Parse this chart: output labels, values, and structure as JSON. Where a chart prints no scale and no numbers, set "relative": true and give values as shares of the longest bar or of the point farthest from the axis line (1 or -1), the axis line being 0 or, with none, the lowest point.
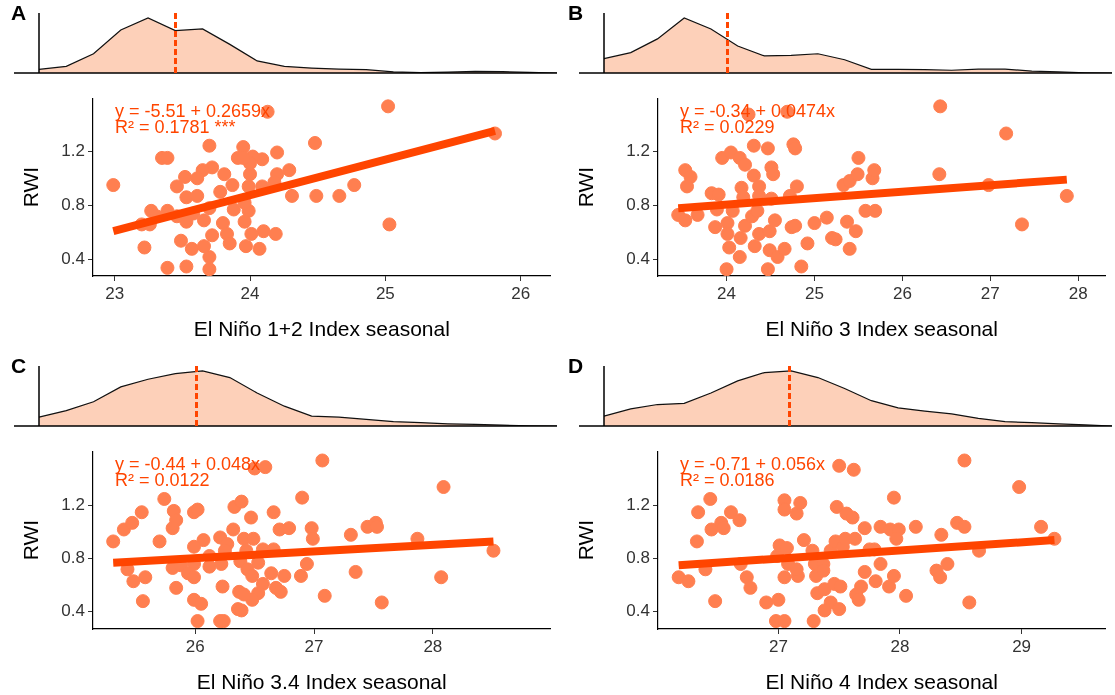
{
  "chart_data": [
    {
      "type": "area",
      "title": "A",
      "relative": true,
      "categories": [
        null,
        null,
        null,
        null,
        null,
        null,
        null,
        null,
        null,
        null,
        null,
        null,
        null,
        null,
        null,
        null,
        null,
        null,
        null,
        null
      ],
      "series": [
        {
          "color": "#fdd0b9",
          "values": [
            0.065,
            0.12,
            0.35,
            0.78,
            1,
            0.77,
            0.8,
            0.52,
            0.22,
            0.12,
            0.09,
            0.07,
            0.06,
            0.02,
            0.008,
            0.015,
            0.03,
            0.025,
            0.01,
            0
          ]
        }
      ]
    },
    {
      "type": "scatter",
      "xlabel": "El Niño 1+2 Index seasonal",
      "ylabel": "RWI",
      "xlim": [
        22.84,
        26.22
      ],
      "xticks": [
        23,
        24,
        25,
        26
      ],
      "ylim": [
        0.28,
        1.59
      ],
      "yticks": [
        0.4,
        0.8,
        1.2
      ],
      "annotations": [
        "y = -5.51 + 0.2659x",
        "R² = 0.1781 ***"
      ],
      "series": [
        {
          "type": "scatter",
          "color": "#ff7f50",
          "x": [
            22.99,
            25.02,
            25.81,
            25.03,
            24.48,
            24.77,
            24.66,
            24.49,
            24.31,
            24.29,
            24.2,
            24.2,
            24.09,
            24.02,
            23.95,
            23.91,
            24.13,
            23.7,
            23.35,
            23.39,
            23.22,
            23.2,
            23.26,
            23.27,
            23.39,
            23.39,
            23.53,
            23.7,
            23.7,
            23.66,
            23.57,
            23.49,
            23.53,
            23.58,
            23.72,
            23.8,
            23.83,
            23.85,
            23.97,
            24.07,
            24.1,
            24.19,
            24.01,
            23.99,
            23.96,
            23.88,
            23.96,
            23.78,
            23.87,
            23.81,
            23.72,
            23.65,
            23.61,
            23.52,
            23.46,
            23.53,
            23.61,
            23.7,
            23.66,
            23.46,
            23.31,
            23.99,
            24,
            24,
            24.09,
            24.18,
            23.95
          ],
          "values": [
            0.95,
            1.53,
            1.33,
            0.66,
            1.26,
            0.95,
            0.87,
            0.87,
            0.87,
            1.06,
            1.03,
            1.19,
            1.14,
            1.16,
            1.23,
            1.15,
            1.49,
            1.24,
            1.15,
            1.15,
            0.49,
            0.66,
            0.66,
            0.76,
            0.76,
            0.34,
            0.35,
            0.33,
            0.42,
            0.5,
            0.48,
            0.54,
            0.68,
            0.74,
            0.58,
            0.67,
            0.59,
            0.52,
            0.5,
            0.48,
            0.61,
            0.59,
            0.59,
            0.76,
            0.68,
            0.77,
            0.82,
            0.9,
            0.95,
            1.03,
            1.08,
            1.06,
            1,
            1.01,
            0.94,
            0.86,
            0.87,
            0.78,
            0.69,
            0.72,
            0.72,
            0.94,
            1.03,
            1.11,
            0.94,
            0.97,
            1.15
          ]
        },
        {
          "type": "line",
          "color": "#ff4500",
          "x": [
            22.99,
            25.81
          ],
          "values": [
            0.61,
            1.35
          ]
        }
      ]
    },
    {
      "type": "area",
      "title": "B",
      "relative": true,
      "categories": [
        null,
        null,
        null,
        null,
        null,
        null,
        null,
        null,
        null,
        null,
        null,
        null,
        null,
        null,
        null,
        null,
        null,
        null,
        null,
        null
      ],
      "series": [
        {
          "color": "#fdd0b9",
          "values": [
            0.26,
            0.37,
            0.62,
            1,
            0.8,
            0.49,
            0.31,
            0.32,
            0.35,
            0.24,
            0.065,
            0.065,
            0.06,
            0.05,
            0.07,
            0.07,
            0.035,
            0.02,
            0.005,
            0
          ]
        }
      ]
    },
    {
      "type": "scatter",
      "xlabel": "El Niño 3 Index seasonal",
      "ylabel": "RWI",
      "xlim": [
        23.22,
        28.31
      ],
      "xticks": [
        24,
        25,
        26,
        27,
        28
      ],
      "ylim": [
        0.28,
        1.59
      ],
      "yticks": [
        0.4,
        0.8,
        1.2
      ],
      "annotations": [
        "y = -0.34 + 0.0474x",
        "R² = 0.0229"
      ],
      "series": [
        {
          "type": "scatter",
          "color": "#ff7f50",
          "x": [
            23.45,
            23.53,
            23.59,
            23.55,
            23.53,
            23.67,
            23.83,
            23.91,
            23.89,
            23.87,
            23.95,
            24.05,
            24.15,
            24.21,
            24.31,
            24.47,
            24.69,
            24.25,
            24.76,
            24.78,
            24.51,
            24.53,
            24.31,
            24.37,
            24.17,
            24.19,
            24.37,
            24.51,
            24.72,
            24.8,
            24.07,
            24.01,
            24.01,
            24.03,
            24.16,
            24.15,
            24,
            24.47,
            24.85,
            24.32,
            24.37,
            24.49,
            24.55,
            24.21,
            24.29,
            24.35,
            24.49,
            24.58,
            24.66,
            24.74,
            24.78,
            24.92,
            25,
            25.14,
            25.2,
            25.24,
            25.37,
            25.47,
            25.4,
            25.33,
            25.4,
            25.49,
            25.5,
            25.58,
            25.69,
            25.66,
            25.68,
            26.42,
            26.43,
            26.98,
            27.18,
            27.36,
            27.87
          ],
          "values": [
            0.73,
            1.06,
            1.01,
            0.94,
            0.69,
            0.73,
            0.89,
            0.88,
            0.77,
            0.64,
            1.15,
            1.19,
            1.15,
            1.1,
            1.24,
            1.22,
            1.49,
            1.47,
            1.25,
            1.22,
            1.08,
            1.03,
            1.02,
            0.94,
            0.93,
            0.86,
            0.87,
            0.85,
            0.87,
            0.94,
            0.76,
            0.67,
            0.59,
            0.49,
            0.56,
            0.42,
            0.33,
            0.33,
            0.35,
            0.5,
            0.59,
            0.61,
            0.69,
            0.65,
            0.72,
            0.76,
            0.47,
            0.42,
            0.48,
            0.64,
            0.65,
            0.52,
            0.67,
            0.71,
            0.56,
            0.55,
            0.68,
            0.61,
            0.48,
            0.95,
            0.98,
            1.03,
            1.15,
            0.76,
            0.76,
            1,
            1.06,
            1.03,
            1.53,
            0.95,
            1.33,
            0.66,
            0.87
          ]
        },
        {
          "type": "line",
          "color": "#ff4500",
          "x": [
            23.45,
            27.87
          ],
          "values": [
            0.78,
            0.99
          ]
        }
      ]
    },
    {
      "type": "area",
      "title": "C",
      "relative": true,
      "categories": [
        null,
        null,
        null,
        null,
        null,
        null,
        null,
        null,
        null,
        null,
        null,
        null,
        null,
        null,
        null,
        null,
        null,
        null,
        null,
        null
      ],
      "series": [
        {
          "color": "#fdd0b9",
          "values": [
            0.16,
            0.28,
            0.44,
            0.71,
            0.85,
            0.95,
            1,
            0.88,
            0.6,
            0.36,
            0.18,
            0.16,
            0.12,
            0.08,
            0.06,
            0.04,
            0.03,
            0.015,
            0.005,
            0
          ]
        }
      ]
    },
    {
      "type": "scatter",
      "xlabel": "El Niño 3.4 Index seasonal",
      "ylabel": "RWI",
      "xlim": [
        25.14,
        28.99
      ],
      "xticks": [
        26,
        27,
        28
      ],
      "ylim": [
        0.27,
        1.61
      ],
      "yticks": [
        0.4,
        0.8,
        1.2
      ],
      "annotations": [
        "y = -0.44 + 0.048x",
        "R² = 0.0122"
      ],
      "series": [
        {
          "type": "scatter",
          "color": "#ff7f50",
          "x": [
            25.31,
            25.4,
            25.47,
            25.55,
            25.43,
            25.48,
            25.58,
            25.56,
            25.84,
            25.7,
            25.74,
            25.82,
            25.84,
            25.81,
            25.99,
            26.02,
            26.07,
            25.99,
            25.99,
            25.81,
            25.88,
            25.94,
            25.99,
            26.12,
            26.12,
            26.22,
            26.21,
            26.27,
            26.25,
            26.32,
            26.33,
            26.39,
            26.41,
            26.49,
            26.47,
            26.5,
            26.59,
            26.43,
            26.38,
            26.53,
            26.57,
            26.66,
            26.66,
            26.71,
            26.79,
            26.44,
            26.48,
            26.64,
            26.75,
            26.57,
            26.68,
            26.72,
            26.53,
            26.48,
            26.37,
            26.41,
            26.23,
            25.99,
            26.05,
            26.02,
            26.21,
            26.24,
            26.36,
            26.39,
            26.89,
            26.94,
            26.9,
            26.98,
            26.99,
            27.07,
            27.09,
            27.31,
            27.35,
            27.45,
            27.52,
            27.53,
            27.57,
            27.87,
            28.09,
            28.07,
            28.51
          ],
          "values": [
            0.93,
            1.02,
            1.07,
            1.15,
            0.72,
            0.63,
            0.66,
            0.48,
            0.58,
            0.93,
            1.25,
            1.16,
            1.09,
            1.03,
            1.15,
            1.17,
            0.94,
            0.89,
            0.76,
            0.73,
            0.75,
            0.69,
            0.66,
            0.82,
            0.74,
            0.76,
            0.96,
            0.91,
            0.86,
            1.02,
            1.19,
            1.23,
            0.95,
            0.95,
            1.11,
            1.48,
            1.49,
            0.86,
            0.78,
            0.77,
            0.87,
            0.87,
            1.15,
            1.02,
            1.03,
            0.72,
            0.67,
            0.69,
            0.67,
            0.61,
            0.58,
            0.55,
            0.54,
            0.49,
            0.55,
            0.53,
            0.59,
            0.49,
            0.46,
            0.33,
            0.33,
            0.33,
            0.42,
            0.41,
            0.67,
            0.76,
            1.26,
            1.03,
            0.95,
            1.54,
            0.52,
            0.98,
            0.7,
            1.04,
            1.07,
            1.04,
            0.47,
            0.95,
            1.34,
            0.66,
            0.86
          ]
        },
        {
          "type": "line",
          "color": "#ff4500",
          "x": [
            25.31,
            28.51
          ],
          "values": [
            0.77,
            0.93
          ]
        }
      ]
    },
    {
      "type": "area",
      "title": "D",
      "relative": true,
      "categories": [
        null,
        null,
        null,
        null,
        null,
        null,
        null,
        null,
        null,
        null,
        null,
        null,
        null,
        null,
        null,
        null,
        null,
        null,
        null,
        null
      ],
      "series": [
        {
          "color": "#fdd0b9",
          "values": [
            0.18,
            0.31,
            0.39,
            0.41,
            0.6,
            0.82,
            0.97,
            1,
            0.88,
            0.68,
            0.46,
            0.33,
            0.27,
            0.22,
            0.14,
            0.08,
            0.06,
            0.04,
            0.02,
            0
          ]
        }
      ]
    },
    {
      "type": "scatter",
      "xlabel": "El Niño 4 Index seasonal",
      "ylabel": "RWI",
      "xlim": [
        26.01,
        29.69
      ],
      "xticks": [
        27,
        28,
        29
      ],
      "ylim": [
        0.27,
        1.61
      ],
      "yticks": [
        0.4,
        0.8,
        1.2
      ],
      "annotations": [
        "y = -0.71 + 0.056x",
        "R² = 0.0186"
      ],
      "series": [
        {
          "type": "scatter",
          "color": "#ff7f50",
          "x": [
            26.18,
            26.26,
            26.4,
            26.48,
            26.33,
            26.34,
            26.44,
            26.45,
            26.53,
            26.55,
            26.61,
            26.68,
            26.69,
            26.74,
            26.77,
            26.9,
            27,
            26.98,
            27.05,
            27.29,
            26.99,
            27.01,
            27.07,
            27.08,
            27.05,
            27.16,
            27.15,
            27.05,
            27.05,
            27.15,
            27.18,
            27.21,
            27.28,
            27.3,
            27.31,
            27.37,
            27.37,
            27.32,
            27.38,
            27.43,
            27.38,
            27.5,
            27.46,
            27.51,
            27.43,
            27.47,
            27.53,
            27.55,
            27.63,
            27.48,
            27.56,
            27.61,
            27.5,
            27.62,
            27.71,
            27.75,
            27.79,
            27.84,
            27.71,
            27.68,
            27.64,
            27.66,
            27.8,
            27.91,
            27.95,
            27.84,
            27.92,
            27.99,
            27.97,
            27.95,
            28.05,
            28.13,
            28.3,
            28.33,
            28.39,
            28.34,
            28.47,
            28.53,
            28.53,
            28.57,
            28.65,
            28.98,
            29.16,
            29.27
          ],
          "values": [
            0.66,
            0.63,
            0.72,
            0.48,
            0.93,
            1.15,
            1.25,
            1.02,
            1.07,
            1.03,
            1.15,
            1.09,
            0.76,
            0.66,
            0.58,
            0.47,
            0.49,
            0.33,
            0.33,
            0.33,
            0.82,
            0.9,
            0.88,
            0.76,
            0.66,
            0.67,
            0.72,
            1.24,
            1.17,
            1.14,
            1.22,
            0.94,
            0.86,
            0.76,
            0.67,
            0.76,
            0.71,
            0.54,
            0.57,
            0.47,
            0.41,
            0.42,
            0.61,
            0.59,
            0.86,
            0.93,
            0.89,
            0.95,
            0.95,
            1.19,
            1.14,
            1.11,
            1.5,
            1.47,
            1.03,
            0.87,
            0.87,
            0.76,
            0.7,
            0.59,
            0.53,
            0.49,
            0.63,
            0.59,
            0.67,
            1.04,
            1.02,
            1.02,
            0.95,
            1.26,
            0.52,
            1.04,
            0.71,
            0.66,
            0.76,
            0.98,
            1.07,
            1.04,
            1.54,
            0.47,
            0.86,
            1.34,
            1.04,
            0.95
          ]
        },
        {
          "type": "line",
          "color": "#ff4500",
          "x": [
            26.18,
            29.27
          ],
          "values": [
            0.75,
            0.94
          ]
        }
      ]
    }
  ]
}
